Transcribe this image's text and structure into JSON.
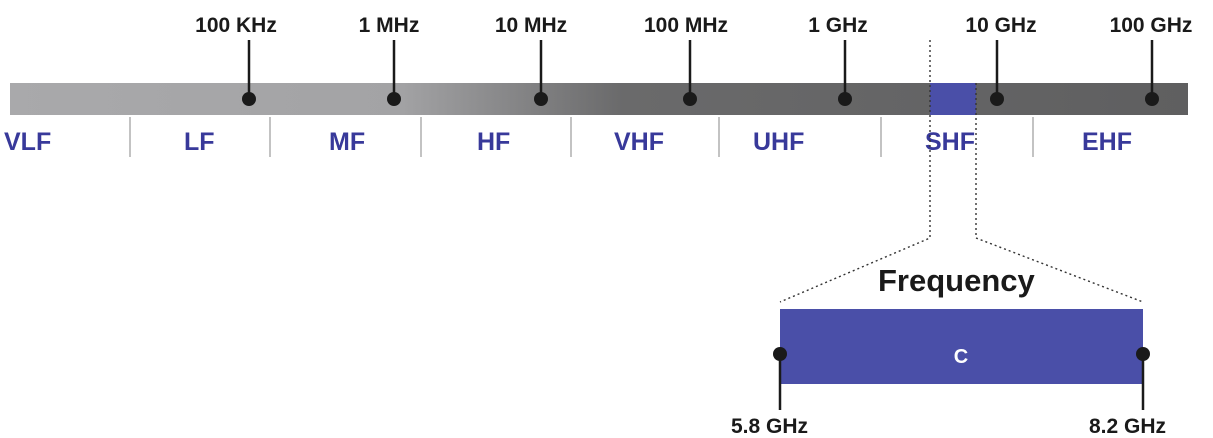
{
  "spectrum": {
    "ticks": [
      "100 KHz",
      "1 MHz",
      "10 MHz",
      "100 MHz",
      "1 GHz",
      "10 GHz",
      "100 GHz"
    ],
    "bands": [
      "VLF",
      "LF",
      "MF",
      "HF",
      "VHF",
      "UHF",
      "SHF",
      "EHF"
    ]
  },
  "zoom": {
    "title": "Frequency",
    "band_label": "C",
    "start_label": "5.8 GHz",
    "end_label": "8.2 GHz"
  },
  "colors": {
    "accent": "#4a4fa8",
    "band_text": "#38399a",
    "bar_light": "#a6a6a8",
    "bar_dark": "#626263",
    "marker": "#1a1a1a"
  }
}
